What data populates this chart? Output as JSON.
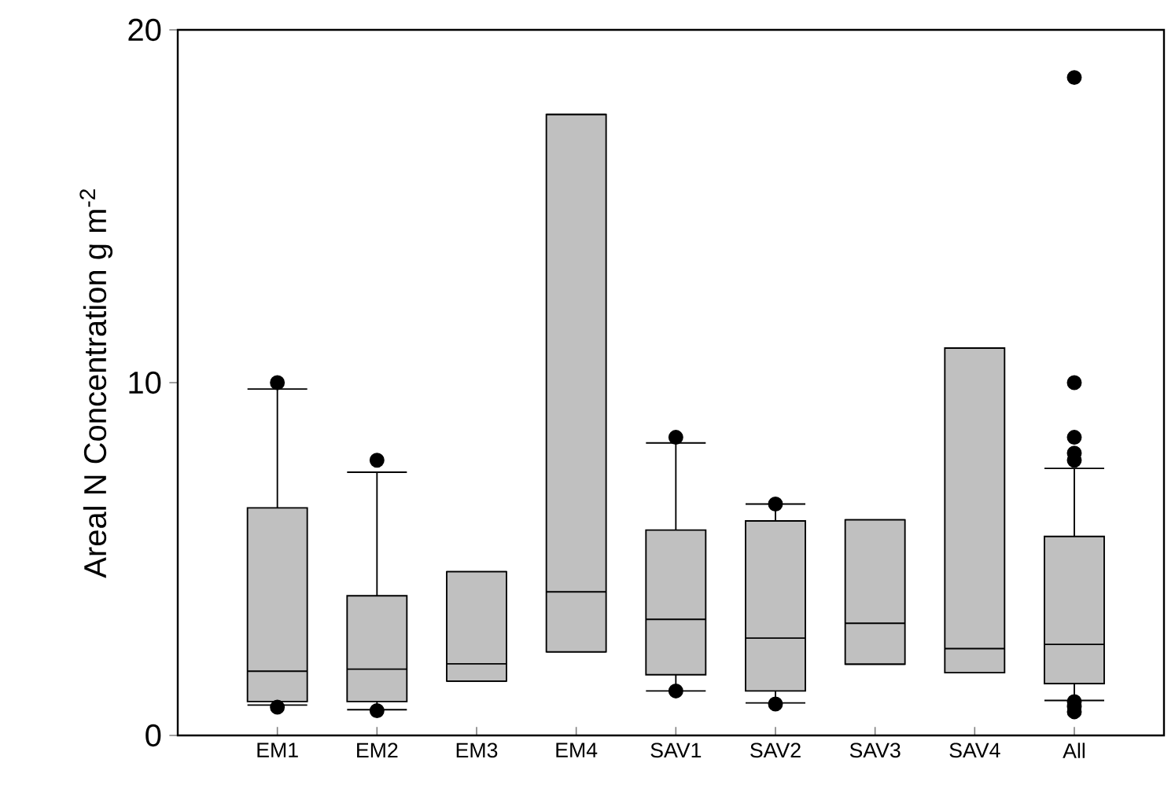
{
  "chart_data": {
    "type": "box",
    "ylabel": "Areal N Concentration  g m$^{-2}$",
    "categories": [
      "EM1",
      "EM2",
      "EM3",
      "EM4",
      "SAV1",
      "SAV2",
      "SAV3",
      "SAV4",
      "All"
    ],
    "ylim": [
      0,
      20
    ],
    "yticks": [
      0,
      10,
      20
    ],
    "marker": "circle",
    "series": [
      {
        "color": "#c0c0c0",
        "boxes": [
          {
            "low": 0.86,
            "q1": 0.96,
            "median": 1.82,
            "q3": 6.45,
            "high": 9.82,
            "outliers": [
              10.0,
              0.8
            ]
          },
          {
            "low": 0.73,
            "q1": 0.96,
            "median": 1.88,
            "q3": 3.96,
            "high": 7.46,
            "outliers": [
              7.8,
              0.7
            ]
          },
          {
            "low": 1.54,
            "q1": 1.54,
            "median": 2.03,
            "q3": 4.64,
            "high": 4.64
          },
          {
            "low": 2.37,
            "q1": 2.37,
            "median": 4.07,
            "q3": 17.6,
            "high": 17.6
          },
          {
            "low": 1.26,
            "q1": 1.72,
            "median": 3.29,
            "q3": 5.82,
            "high": 8.29,
            "outliers": [
              8.45,
              1.26
            ]
          },
          {
            "low": 0.92,
            "q1": 1.26,
            "median": 2.76,
            "q3": 6.08,
            "high": 6.56,
            "outliers": [
              6.56,
              0.89
            ]
          },
          {
            "low": 2.02,
            "q1": 2.02,
            "median": 3.18,
            "q3": 6.11,
            "high": 6.11
          },
          {
            "low": 1.78,
            "q1": 1.78,
            "median": 2.46,
            "q3": 10.98,
            "high": 10.98
          },
          {
            "low": 0.99,
            "q1": 1.47,
            "median": 2.58,
            "q3": 5.64,
            "high": 7.57,
            "outliers": [
              18.65,
              10.0,
              8.45,
              8.0,
              7.8,
              0.96,
              0.82,
              0.67
            ]
          }
        ]
      }
    ]
  }
}
